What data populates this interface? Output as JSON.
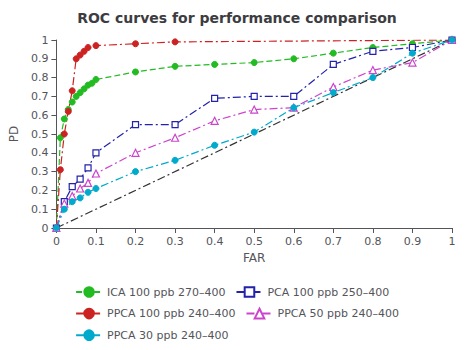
{
  "chart_data": {
    "type": "line",
    "title": "ROC curves for performance comparison",
    "xlabel": "FAR",
    "ylabel": "PD",
    "xlim": [
      0,
      1
    ],
    "ylim": [
      0,
      1
    ],
    "xticks": [
      0,
      0.1,
      0.2,
      0.3,
      0.4,
      0.5,
      0.6,
      0.7,
      0.8,
      0.9,
      1
    ],
    "yticks": [
      0,
      0.1,
      0.2,
      0.3,
      0.4,
      0.5,
      0.6,
      0.7,
      0.8,
      0.9,
      1
    ],
    "grid": false,
    "legend": "bottom",
    "series": [
      {
        "x": [
          0,
          1
        ],
        "values": [
          0,
          1
        ],
        "color": "#333333",
        "line_style": "dashdot",
        "marker": "none"
      },
      {
        "name": "ICA 100 ppb 270–400",
        "color": "#22bb22",
        "line_style": "dashed",
        "marker": "circle",
        "x": [
          0.0,
          0.01,
          0.02,
          0.03,
          0.04,
          0.05,
          0.06,
          0.07,
          0.08,
          0.09,
          0.1,
          0.2,
          0.3,
          0.4,
          0.5,
          0.6,
          0.7,
          0.8,
          0.9,
          1.0
        ],
        "values": [
          0.0,
          0.48,
          0.58,
          0.63,
          0.67,
          0.7,
          0.72,
          0.74,
          0.76,
          0.77,
          0.79,
          0.83,
          0.86,
          0.87,
          0.88,
          0.9,
          0.93,
          0.96,
          0.98,
          1.0
        ]
      },
      {
        "name": "PCA 100 ppb 250–400",
        "color": "#2222aa",
        "line_style": "dashdot",
        "marker": "open_square",
        "x": [
          0.0,
          0.02,
          0.04,
          0.06,
          0.08,
          0.1,
          0.2,
          0.3,
          0.4,
          0.5,
          0.6,
          0.7,
          0.8,
          0.9,
          1.0
        ],
        "values": [
          0.0,
          0.14,
          0.22,
          0.26,
          0.32,
          0.4,
          0.55,
          0.55,
          0.69,
          0.7,
          0.7,
          0.87,
          0.94,
          0.96,
          1.0
        ]
      },
      {
        "name": "PPCA 100 ppb 240–400",
        "color": "#cc2222",
        "line_style": "dashdot",
        "marker": "circle",
        "x": [
          0.0,
          0.01,
          0.02,
          0.03,
          0.04,
          0.05,
          0.06,
          0.07,
          0.08,
          0.1,
          0.2,
          0.3,
          1.0
        ],
        "values": [
          0.0,
          0.31,
          0.5,
          0.62,
          0.73,
          0.9,
          0.92,
          0.94,
          0.96,
          0.97,
          0.98,
          0.99,
          1.0
        ]
      },
      {
        "name": "PPCA 50 ppb 240–400",
        "color": "#cc44cc",
        "line_style": "dashdot",
        "marker": "open_triangle",
        "x": [
          0.0,
          0.02,
          0.04,
          0.06,
          0.08,
          0.1,
          0.2,
          0.3,
          0.4,
          0.5,
          0.6,
          0.7,
          0.8,
          0.9,
          1.0
        ],
        "values": [
          0.0,
          0.13,
          0.17,
          0.21,
          0.24,
          0.29,
          0.4,
          0.48,
          0.57,
          0.63,
          0.64,
          0.75,
          0.84,
          0.88,
          1.0
        ]
      },
      {
        "name": "PPCA 30 ppb 240–400",
        "color": "#00aacc",
        "line_style": "dashdot",
        "marker": "circle",
        "x": [
          0.0,
          0.02,
          0.04,
          0.06,
          0.08,
          0.1,
          0.2,
          0.3,
          0.4,
          0.5,
          0.6,
          0.7,
          0.8,
          0.9,
          1.0
        ],
        "values": [
          0.0,
          0.1,
          0.14,
          0.16,
          0.19,
          0.21,
          0.3,
          0.36,
          0.44,
          0.51,
          0.64,
          0.72,
          0.8,
          0.93,
          1.0
        ]
      }
    ]
  }
}
